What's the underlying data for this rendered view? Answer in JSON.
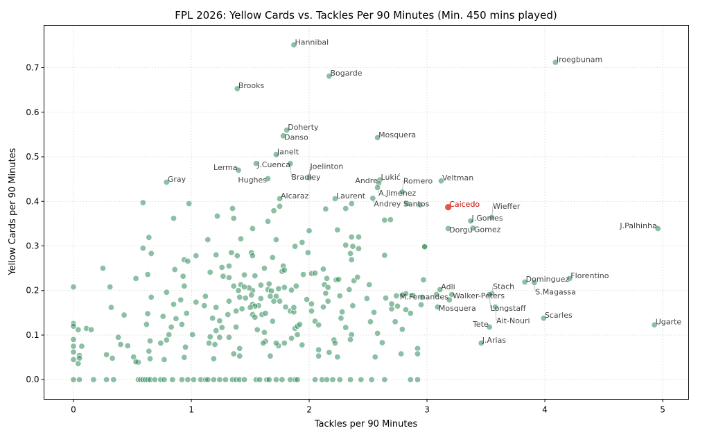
{
  "chart_data": {
    "type": "scatter",
    "title": "FPL 2026: Yellow Cards vs. Tackles Per 90 Minutes (Min. 450 mins played)",
    "xlabel": "Tackles per 90 Minutes",
    "ylabel": "Yellow Cards per 90 Minutes",
    "xlim": [
      -0.25,
      5.22
    ],
    "ylim": [
      -0.044,
      0.795
    ],
    "xticks": [
      "0",
      "1",
      "2",
      "3",
      "4",
      "5"
    ],
    "yticks": [
      "0.0",
      "0.1",
      "0.2",
      "0.3",
      "0.4",
      "0.5",
      "0.6",
      "0.7"
    ],
    "xtick_values": [
      0,
      1,
      2,
      3,
      4,
      5
    ],
    "ytick_values": [
      0,
      0.1,
      0.2,
      0.3,
      0.4,
      0.5,
      0.6,
      0.7
    ],
    "grid": true,
    "colors": {
      "point": "#2e8b57",
      "highlight": "#e0463a",
      "highlight_label": "#cc0000",
      "label": "#444444"
    },
    "labeled": [
      {
        "name": "Hannibal",
        "x": 1.87,
        "y": 0.751
      },
      {
        "name": "Iroegbunam",
        "x": 4.09,
        "y": 0.712
      },
      {
        "name": "Bogarde",
        "x": 2.17,
        "y": 0.681
      },
      {
        "name": "Brooks",
        "x": 1.39,
        "y": 0.653
      },
      {
        "name": "Doherty",
        "x": 1.81,
        "y": 0.56
      },
      {
        "name": "Danso",
        "x": 1.78,
        "y": 0.547
      },
      {
        "name": "Mosquera",
        "x": 2.58,
        "y": 0.543
      },
      {
        "name": "Janelt",
        "x": 1.72,
        "y": 0.505
      },
      {
        "name": "J.Cuenca",
        "x": 1.55,
        "y": 0.485
      },
      {
        "name": "Bradley",
        "x": 1.84,
        "y": 0.485
      },
      {
        "name": "Lerma",
        "x": 1.4,
        "y": 0.47
      },
      {
        "name": "Hughes",
        "x": 1.65,
        "y": 0.451
      },
      {
        "name": "Joelinton",
        "x": 2.0,
        "y": 0.453
      },
      {
        "name": "Gray",
        "x": 0.79,
        "y": 0.443
      },
      {
        "name": "Lukić",
        "x": 2.6,
        "y": 0.448
      },
      {
        "name": "Andre",
        "x": 2.59,
        "y": 0.44
      },
      {
        "name": "A.Jimenez",
        "x": 2.58,
        "y": 0.431
      },
      {
        "name": "Romero",
        "x": 2.79,
        "y": 0.421
      },
      {
        "name": "Veltman",
        "x": 3.12,
        "y": 0.446
      },
      {
        "name": "Alcaraz",
        "x": 1.75,
        "y": 0.406
      },
      {
        "name": "Laurent",
        "x": 2.22,
        "y": 0.406
      },
      {
        "name": "Andrey Santos",
        "x": 2.54,
        "y": 0.407
      },
      {
        "name": "Caicedo",
        "x": 3.18,
        "y": 0.387,
        "highlight": true
      },
      {
        "name": "J.Gomes",
        "x": 3.37,
        "y": 0.356
      },
      {
        "name": "Wieffer",
        "x": 3.55,
        "y": 0.364
      },
      {
        "name": "Dorgu",
        "x": 3.18,
        "y": 0.339
      },
      {
        "name": "Gomez",
        "x": 3.39,
        "y": 0.34
      },
      {
        "name": "J.Palhinha",
        "x": 4.96,
        "y": 0.339
      },
      {
        "name": "Florentino",
        "x": 4.21,
        "y": 0.227
      },
      {
        "name": "Dominguez",
        "x": 3.83,
        "y": 0.219
      },
      {
        "name": "S.Magassa",
        "x": 3.91,
        "y": 0.218
      },
      {
        "name": "Adli",
        "x": 3.11,
        "y": 0.202
      },
      {
        "name": "Walker-Peters",
        "x": 3.21,
        "y": 0.191
      },
      {
        "name": "Stach",
        "x": 3.55,
        "y": 0.193
      },
      {
        "name": "Longstaff",
        "x": 3.53,
        "y": 0.191
      },
      {
        "name": "M.Fernandes",
        "x": 3.19,
        "y": 0.179
      },
      {
        "name": "Mosquera",
        "x": 3.09,
        "y": 0.163
      },
      {
        "name": "Ait-Nouri",
        "x": 3.58,
        "y": 0.163
      },
      {
        "name": "Scarles",
        "x": 3.99,
        "y": 0.138
      },
      {
        "name": "Ugarte",
        "x": 4.93,
        "y": 0.123
      },
      {
        "name": "Tete",
        "x": 3.53,
        "y": 0.118
      },
      {
        "name": "J.Arias",
        "x": 3.46,
        "y": 0.082
      }
    ],
    "points": [
      [
        0.59,
        0.397
      ],
      [
        0.98,
        0.395
      ],
      [
        0.85,
        0.362
      ],
      [
        1.22,
        0.367
      ],
      [
        1.35,
        0.384
      ],
      [
        1.36,
        0.362
      ],
      [
        0.25,
        0.25
      ],
      [
        0.64,
        0.319
      ],
      [
        0.59,
        0.295
      ],
      [
        0.66,
        0.283
      ],
      [
        1.14,
        0.314
      ],
      [
        1.42,
        0.316
      ],
      [
        1.04,
        0.278
      ],
      [
        1.21,
        0.28
      ],
      [
        1.34,
        0.285
      ],
      [
        1.39,
        0.278
      ],
      [
        0.94,
        0.269
      ],
      [
        0.97,
        0.266
      ],
      [
        0.86,
        0.247
      ],
      [
        0.93,
        0.232
      ],
      [
        0.94,
        0.21
      ],
      [
        1.16,
        0.241
      ],
      [
        1.26,
        0.252
      ],
      [
        1.32,
        0.255
      ],
      [
        1.27,
        0.232
      ],
      [
        1.32,
        0.229
      ],
      [
        1.45,
        0.235
      ],
      [
        0,
        0.208
      ],
      [
        0.31,
        0.208
      ],
      [
        0.53,
        0.227
      ],
      [
        0.63,
        0.236
      ],
      [
        0.66,
        0.185
      ],
      [
        0.32,
        0.162
      ],
      [
        0.43,
        0.145
      ],
      [
        0.63,
        0.148
      ],
      [
        0.62,
        0.124
      ],
      [
        0.79,
        0.196
      ],
      [
        0.91,
        0.179
      ],
      [
        0.85,
        0.169
      ],
      [
        0.96,
        0.149
      ],
      [
        0.87,
        0.137
      ],
      [
        0.92,
        0.124
      ],
      [
        0.83,
        0.118
      ],
      [
        0.81,
        0.101
      ],
      [
        0.76,
        0.142
      ],
      [
        1.12,
        0.187
      ],
      [
        1.04,
        0.174
      ],
      [
        1.11,
        0.166
      ],
      [
        1.21,
        0.162
      ],
      [
        1.32,
        0.176
      ],
      [
        1.36,
        0.21
      ],
      [
        1.42,
        0.213
      ],
      [
        1.41,
        0.185
      ],
      [
        1.31,
        0.146
      ],
      [
        1.38,
        0.154
      ],
      [
        1.43,
        0.159
      ],
      [
        1.18,
        0.138
      ],
      [
        1.24,
        0.132
      ],
      [
        1.21,
        0.11
      ],
      [
        1.26,
        0.117
      ],
      [
        1.38,
        0.118
      ],
      [
        1.24,
        0.095
      ],
      [
        1.32,
        0.095
      ],
      [
        1.16,
        0.096
      ],
      [
        1.01,
        0.101
      ],
      [
        1.15,
        0.082
      ],
      [
        1.2,
        0.079
      ],
      [
        0.95,
        0.073
      ],
      [
        0.94,
        0.05
      ],
      [
        1.19,
        0.047
      ],
      [
        1.36,
        0.058
      ],
      [
        1.41,
        0.053
      ],
      [
        1.41,
        0.07
      ],
      [
        0.77,
        0.045
      ],
      [
        0.65,
        0.047
      ],
      [
        0.64,
        0.064
      ],
      [
        0.65,
        0.087
      ],
      [
        0.74,
        0.082
      ],
      [
        0.79,
        0.089
      ],
      [
        0.4,
        0.079
      ],
      [
        0.46,
        0.076
      ],
      [
        0.38,
        0.095
      ],
      [
        0.51,
        0.051
      ],
      [
        0.55,
        0.039
      ],
      [
        0.53,
        0.04
      ],
      [
        0.28,
        0.056
      ],
      [
        0.33,
        0.048
      ],
      [
        0.11,
        0.115
      ],
      [
        0.15,
        0.112
      ],
      [
        0.04,
        0.112
      ],
      [
        0,
        0.126
      ],
      [
        0,
        0.12
      ],
      [
        0,
        0.09
      ],
      [
        0,
        0.075
      ],
      [
        0.07,
        0.075
      ],
      [
        0,
        0.062
      ],
      [
        0.05,
        0.054
      ],
      [
        0.05,
        0.048
      ],
      [
        0,
        0.045
      ],
      [
        0.04,
        0.036
      ],
      [
        1.7,
        0.379
      ],
      [
        1.75,
        0.389
      ],
      [
        1.65,
        0.355
      ],
      [
        1.52,
        0.339
      ],
      [
        1.72,
        0.314
      ],
      [
        1.94,
        0.308
      ],
      [
        1.88,
        0.299
      ],
      [
        2.0,
        0.334
      ],
      [
        1.99,
        0.285
      ],
      [
        2.14,
        0.383
      ],
      [
        2.31,
        0.384
      ],
      [
        2.36,
        0.395
      ],
      [
        2.24,
        0.336
      ],
      [
        2.36,
        0.32
      ],
      [
        2.42,
        0.32
      ],
      [
        2.31,
        0.302
      ],
      [
        2.37,
        0.299
      ],
      [
        2.42,
        0.294
      ],
      [
        2.35,
        0.283
      ],
      [
        2.36,
        0.269
      ],
      [
        2.64,
        0.358
      ],
      [
        2.69,
        0.359
      ],
      [
        2.94,
        0.392
      ],
      [
        2.98,
        0.299
      ],
      [
        2.64,
        0.279
      ],
      [
        2.97,
        0.224
      ],
      [
        2.96,
        0.185
      ],
      [
        2.12,
        0.248
      ],
      [
        2.15,
        0.227
      ],
      [
        2.13,
        0.213
      ],
      [
        2.16,
        0.207
      ],
      [
        2.02,
        0.238
      ],
      [
        2.05,
        0.239
      ],
      [
        1.95,
        0.236
      ],
      [
        2.23,
        0.224
      ],
      [
        2.25,
        0.225
      ],
      [
        2.38,
        0.222
      ],
      [
        2.41,
        0.23
      ],
      [
        2.34,
        0.202
      ],
      [
        2.26,
        0.188
      ],
      [
        2.14,
        0.194
      ],
      [
        2.16,
        0.176
      ],
      [
        2.12,
        0.163
      ],
      [
        2.37,
        0.166
      ],
      [
        2.51,
        0.213
      ],
      [
        2.49,
        0.182
      ],
      [
        2.65,
        0.183
      ],
      [
        2.74,
        0.188
      ],
      [
        2.82,
        0.193
      ],
      [
        2.7,
        0.159
      ],
      [
        2.82,
        0.157
      ],
      [
        2.86,
        0.149
      ],
      [
        2.55,
        0.151
      ],
      [
        2.52,
        0.13
      ],
      [
        2.79,
        0.113
      ],
      [
        2.58,
        0.104
      ],
      [
        2.62,
        0.083
      ],
      [
        2.92,
        0.07
      ],
      [
        2.56,
        0.051
      ],
      [
        2.28,
        0.152
      ],
      [
        2.27,
        0.138
      ],
      [
        2.31,
        0.117
      ],
      [
        2.36,
        0.101
      ],
      [
        2.35,
        0.09
      ],
      [
        2.21,
        0.089
      ],
      [
        2.22,
        0.082
      ],
      [
        2.08,
        0.067
      ],
      [
        2.08,
        0.053
      ],
      [
        2.17,
        0.061
      ],
      [
        2.24,
        0.051
      ],
      [
        2.05,
        0.131
      ],
      [
        2.08,
        0.123
      ],
      [
        2.02,
        0.17
      ],
      [
        2.02,
        0.154
      ],
      [
        1.98,
        0.18
      ],
      [
        1.89,
        0.21
      ],
      [
        1.85,
        0.201
      ],
      [
        1.79,
        0.207
      ],
      [
        1.74,
        0.204
      ],
      [
        1.66,
        0.215
      ],
      [
        1.65,
        0.202
      ],
      [
        1.68,
        0.199
      ],
      [
        1.59,
        0.212
      ],
      [
        1.52,
        0.2
      ],
      [
        1.49,
        0.206
      ],
      [
        1.45,
        0.208
      ],
      [
        1.4,
        0.2
      ],
      [
        1.51,
        0.19
      ],
      [
        1.46,
        0.183
      ],
      [
        1.59,
        0.182
      ],
      [
        1.67,
        0.187
      ],
      [
        1.72,
        0.187
      ],
      [
        1.7,
        0.176
      ],
      [
        1.75,
        0.176
      ],
      [
        1.52,
        0.169
      ],
      [
        1.57,
        0.166
      ],
      [
        1.54,
        0.165
      ],
      [
        1.5,
        0.162
      ],
      [
        1.8,
        0.163
      ],
      [
        1.84,
        0.154
      ],
      [
        1.87,
        0.152
      ],
      [
        1.87,
        0.162
      ],
      [
        1.52,
        0.146
      ],
      [
        1.54,
        0.14
      ],
      [
        1.6,
        0.146
      ],
      [
        1.63,
        0.149
      ],
      [
        1.69,
        0.131
      ],
      [
        1.56,
        0.112
      ],
      [
        1.62,
        0.106
      ],
      [
        1.88,
        0.115
      ],
      [
        1.9,
        0.12
      ],
      [
        1.92,
        0.124
      ],
      [
        1.9,
        0.101
      ],
      [
        1.85,
        0.093
      ],
      [
        1.94,
        0.078
      ],
      [
        1.79,
        0.082
      ],
      [
        1.74,
        0.076
      ],
      [
        1.72,
        0.082
      ],
      [
        1.63,
        0.086
      ],
      [
        1.61,
        0.082
      ],
      [
        1.67,
        0.053
      ],
      [
        1.54,
        0.233
      ],
      [
        1.62,
        0.25
      ],
      [
        1.51,
        0.285
      ],
      [
        1.52,
        0.278
      ],
      [
        1.69,
        0.274
      ],
      [
        1.78,
        0.255
      ],
      [
        1.77,
        0.243
      ],
      [
        1.79,
        0.246
      ],
      [
        2.83,
        0.395
      ],
      [
        3.08,
        0.191
      ],
      [
        2.79,
        0.19
      ],
      [
        2.88,
        0.189
      ],
      [
        2.7,
        0.17
      ],
      [
        2.75,
        0.165
      ],
      [
        2.95,
        0.168
      ],
      [
        2.73,
        0.13
      ],
      [
        2.92,
        0.058
      ],
      [
        2.78,
        0.058
      ],
      [
        2.98,
        0.298
      ],
      [
        0,
        0
      ],
      [
        0.05,
        0
      ],
      [
        0.17,
        0
      ],
      [
        0.28,
        0
      ],
      [
        0.34,
        0
      ],
      [
        0.55,
        0
      ],
      [
        0.57,
        0
      ],
      [
        0.59,
        0
      ],
      [
        0.61,
        0
      ],
      [
        0.63,
        0
      ],
      [
        0.65,
        0
      ],
      [
        0.69,
        0
      ],
      [
        0.74,
        0
      ],
      [
        0.77,
        0
      ],
      [
        0.84,
        0
      ],
      [
        0.92,
        0
      ],
      [
        0.97,
        0
      ],
      [
        1.02,
        0
      ],
      [
        1.08,
        0
      ],
      [
        1.12,
        0
      ],
      [
        1.14,
        0
      ],
      [
        1.19,
        0
      ],
      [
        1.24,
        0
      ],
      [
        1.29,
        0
      ],
      [
        1.35,
        0
      ],
      [
        1.38,
        0
      ],
      [
        1.41,
        0
      ],
      [
        1.45,
        0
      ],
      [
        1.55,
        0
      ],
      [
        1.58,
        0
      ],
      [
        1.64,
        0
      ],
      [
        1.66,
        0
      ],
      [
        1.72,
        0
      ],
      [
        1.77,
        0
      ],
      [
        1.84,
        0
      ],
      [
        1.88,
        0
      ],
      [
        1.9,
        0
      ],
      [
        2.05,
        0
      ],
      [
        2.11,
        0
      ],
      [
        2.15,
        0
      ],
      [
        2.2,
        0
      ],
      [
        2.26,
        0
      ],
      [
        2.35,
        0
      ],
      [
        2.44,
        0
      ],
      [
        2.53,
        0
      ],
      [
        2.64,
        0
      ],
      [
        2.86,
        0
      ],
      [
        2.92,
        0
      ]
    ]
  }
}
